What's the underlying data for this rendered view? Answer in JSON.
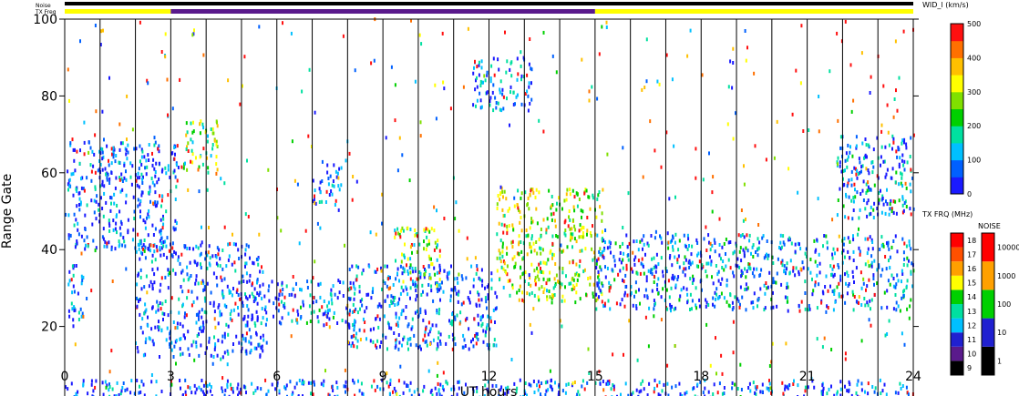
{
  "chart_data": {
    "type": "heatmap",
    "xlabel": "UT hours",
    "ylabel": "Range Gate",
    "xlim": [
      0,
      24
    ],
    "ylim": [
      0,
      100
    ],
    "x_ticks": [
      0,
      3,
      6,
      9,
      12,
      15,
      18,
      21,
      24
    ],
    "y_ticks": [
      0,
      20,
      40,
      60,
      80,
      100
    ],
    "hour_lines": [
      1,
      2,
      3,
      4,
      5,
      6,
      7,
      8,
      9,
      10,
      11,
      12,
      13,
      14,
      15,
      16,
      17,
      18,
      19,
      20,
      21,
      22,
      23
    ],
    "status_bars": {
      "noise_label": "Noise",
      "txfreq_label": "TX Freq",
      "noise_color": "#000000",
      "txfreq_segments": [
        {
          "from": 0,
          "to": 3,
          "color": "#ffff00"
        },
        {
          "from": 3,
          "to": 15,
          "color": "#5a1a8c"
        },
        {
          "from": 15,
          "to": 24,
          "color": "#ffff00"
        }
      ]
    },
    "scatter_regions": [
      {
        "name": "",
        "x": [
          0.05,
          3.2
        ],
        "y": [
          40,
          68
        ],
        "level": 0.12
      },
      {
        "name": "",
        "x": [
          0.05,
          0.55
        ],
        "y": [
          20,
          36
        ],
        "level": 0.15
      },
      {
        "name": "",
        "x": [
          2.0,
          5.6
        ],
        "y": [
          12,
          42
        ],
        "level": 0.1
      },
      {
        "name": "",
        "x": [
          3.3,
          4.3
        ],
        "y": [
          60,
          74
        ],
        "level": 0.5
      },
      {
        "name": "",
        "x": [
          5.6,
          8.2
        ],
        "y": [
          20,
          32
        ],
        "level": 0.18
      },
      {
        "name": "",
        "x": [
          7.0,
          7.8
        ],
        "y": [
          50,
          62
        ],
        "level": 0.1
      },
      {
        "name": "",
        "x": [
          8.0,
          12.2
        ],
        "y": [
          14,
          36
        ],
        "level": 0.15
      },
      {
        "name": "",
        "x": [
          9.3,
          10.6
        ],
        "y": [
          30,
          46
        ],
        "level": 0.45
      },
      {
        "name": "",
        "x": [
          11.5,
          13.2
        ],
        "y": [
          76,
          90
        ],
        "level": 0.15
      },
      {
        "name": "",
        "x": [
          12.2,
          15.2
        ],
        "y": [
          26,
          56
        ],
        "level": 0.55
      },
      {
        "name": "",
        "x": [
          15.0,
          24.0
        ],
        "y": [
          24,
          44
        ],
        "level": 0.2
      },
      {
        "name": "",
        "x": [
          21.8,
          24.0
        ],
        "y": [
          48,
          70
        ],
        "level": 0.18
      },
      {
        "name": "",
        "x": [
          0.0,
          24.0
        ],
        "y": [
          0,
          6
        ],
        "level": 0.1
      }
    ],
    "colorbars": [
      {
        "title": "WID_l (km/s)",
        "ticks": [
          "0",
          "100",
          "200",
          "300",
          "400",
          "500"
        ],
        "stops": [
          "#1a1aff",
          "#0060ff",
          "#00c0ff",
          "#00e0a0",
          "#00d000",
          "#80e000",
          "#ffff00",
          "#ffc000",
          "#ff7000",
          "#ff1010"
        ]
      },
      {
        "title": "TX FRQ (MHz)",
        "ticks": [
          "9",
          "10",
          "11",
          "12",
          "13",
          "14",
          "15",
          "16",
          "17",
          "18"
        ],
        "colors": [
          "#000000",
          "#5a1a8c",
          "#2020d0",
          "#00c0ff",
          "#00e0a0",
          "#00d000",
          "#ffff00",
          "#ffa000",
          "#ff5000",
          "#ff0000"
        ]
      },
      {
        "title": "NOISE",
        "ticks": [
          "1",
          "10",
          "100",
          "1000",
          "10000"
        ],
        "colors": [
          "#000000",
          "#2020d0",
          "#00d000",
          "#ffa000",
          "#ff0000"
        ]
      }
    ]
  }
}
